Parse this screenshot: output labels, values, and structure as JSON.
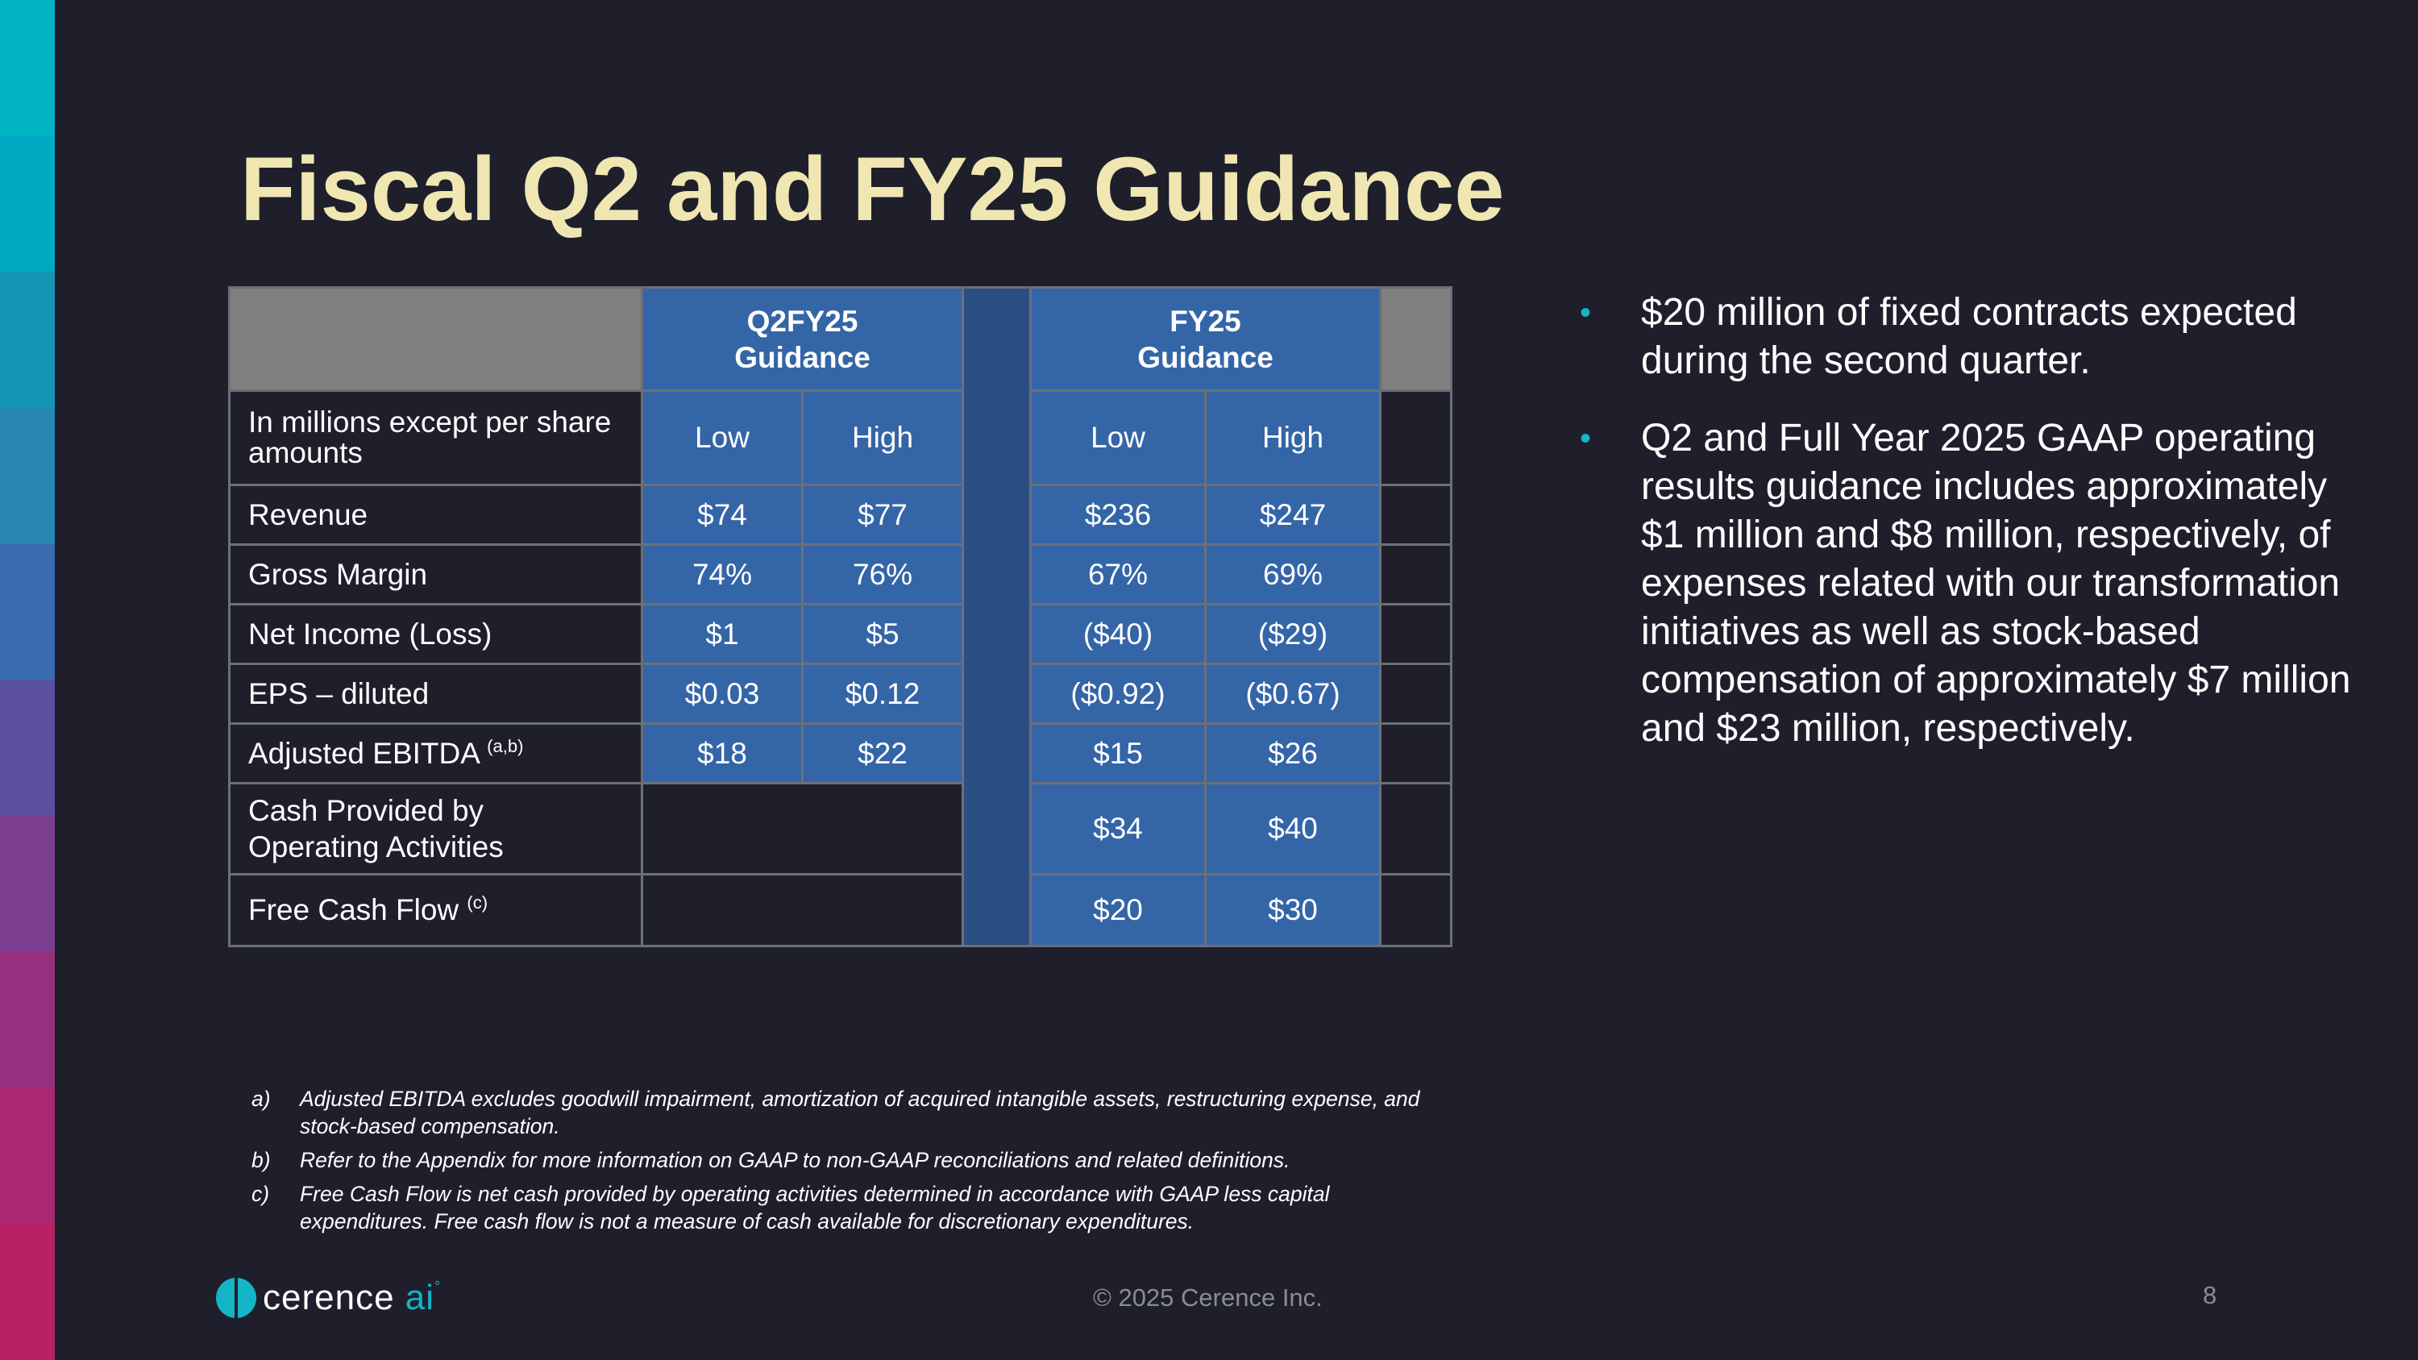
{
  "title": "Fiscal Q2 and FY25 Guidance",
  "table": {
    "group_headers": [
      {
        "line1": "Q2FY25",
        "line2": "Guidance"
      },
      {
        "line1": "FY25",
        "line2": "Guidance"
      }
    ],
    "subheader_label": "In millions except per share amounts",
    "col_labels": [
      "Low",
      "High",
      "Low",
      "High"
    ],
    "rows": [
      {
        "label": "Revenue",
        "sup": "",
        "values": [
          "$74",
          "$77",
          "$236",
          "$247"
        ]
      },
      {
        "label": "Gross Margin",
        "sup": "",
        "values": [
          "74%",
          "76%",
          "67%",
          "69%"
        ]
      },
      {
        "label": "Net Income (Loss)",
        "sup": "",
        "values": [
          "$1",
          "$5",
          "($40)",
          "($29)"
        ]
      },
      {
        "label": "EPS – diluted",
        "sup": "",
        "values": [
          "$0.03",
          "$0.12",
          "($0.92)",
          "($0.67)"
        ]
      },
      {
        "label": "Adjusted EBITDA",
        "sup": "(a,b)",
        "values": [
          "$18",
          "$22",
          "$15",
          "$26"
        ]
      },
      {
        "label": "Cash Provided by Operating Activities",
        "sup": "",
        "values": [
          "",
          "",
          "$34",
          "$40"
        ]
      },
      {
        "label": "Free Cash Flow",
        "sup": "(c)",
        "values": [
          "",
          "",
          "$20",
          "$30"
        ]
      }
    ]
  },
  "bullets": [
    "$20 million of fixed contracts expected during the second quarter.",
    "Q2 and Full Year 2025 GAAP operating results guidance includes approximately $1 million and $8 million, respectively, of expenses related with our transformation initiatives as well as stock-based compensation of approximately $7 million and $23 million, respectively."
  ],
  "footnotes": [
    {
      "letter": "a)",
      "text": "Adjusted EBITDA excludes goodwill impairment, amortization of acquired intangible assets, restructuring expense, and stock-based compensation."
    },
    {
      "letter": "b)",
      "text": "Refer to the Appendix for more information on GAAP to non-GAAP reconciliations and related definitions."
    },
    {
      "letter": "c)",
      "text": "Free Cash Flow is net cash provided by operating activities determined in accordance with GAAP less capital expenditures.  Free cash flow is not a measure of cash available for discretionary expenditures."
    }
  ],
  "footer": {
    "logo_text": "cerence",
    "logo_ai": "ai",
    "logo_mark": "°",
    "copyright": "© 2025 Cerence Inc.",
    "page_number": "8"
  },
  "colors": {
    "background": "#1e1f2b",
    "title": "#efe6b2",
    "table_blue": "#3465a7",
    "accent": "#13b5c6",
    "stripe": [
      "#00b4c4",
      "#00a9c2",
      "#1495b5",
      "#2887b2",
      "#3a6ab0",
      "#5b4f9f",
      "#7b3d8f",
      "#96307e",
      "#ab2772",
      "#b91f63"
    ]
  }
}
